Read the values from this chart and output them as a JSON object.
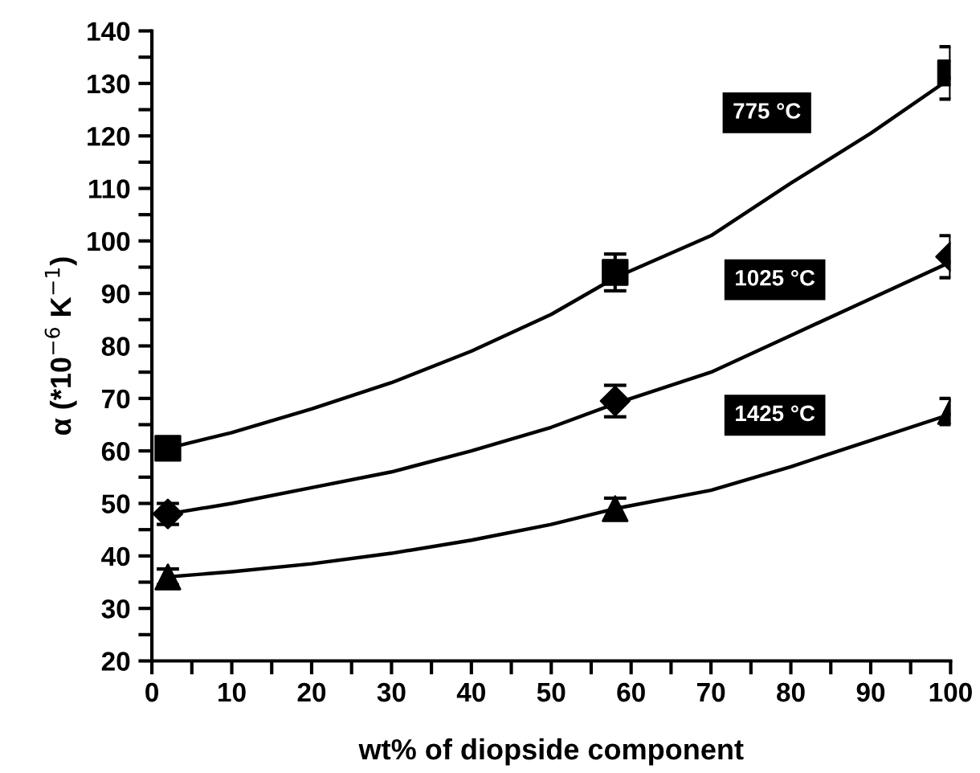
{
  "chart_data": {
    "type": "scatter",
    "xlabel": "wt% of diopside component",
    "ylabel": "α (*10$^{−6}$ K$^{−1}$)",
    "xlim": [
      0,
      100
    ],
    "xticks": [
      0,
      {
        "value": 5,
        "label": null
      },
      10,
      {
        "value": 15,
        "label": null
      },
      20,
      {
        "value": 25,
        "label": null
      },
      30,
      {
        "value": 35,
        "label": null
      },
      40,
      {
        "value": 45,
        "label": null
      },
      50,
      {
        "value": 55,
        "label": null
      },
      60,
      {
        "value": 65,
        "label": null
      },
      70,
      {
        "value": 75,
        "label": null
      },
      80,
      {
        "value": 85,
        "label": null
      },
      90,
      {
        "value": 95,
        "label": null
      },
      100
    ],
    "ylim": [
      20,
      140
    ],
    "yticks": [
      20,
      {
        "value": 25,
        "label": null
      },
      30,
      {
        "value": 35,
        "label": null
      },
      40,
      {
        "value": 45,
        "label": null
      },
      50,
      {
        "value": 55,
        "label": null
      },
      60,
      {
        "value": 65,
        "label": null
      },
      70,
      {
        "value": 75,
        "label": null
      },
      80,
      {
        "value": 85,
        "label": null
      },
      90,
      {
        "value": 95,
        "label": null
      },
      100,
      {
        "value": 105,
        "label": null
      },
      110,
      {
        "value": 115,
        "label": null
      },
      120,
      {
        "value": 125,
        "label": null
      },
      130,
      {
        "value": 135,
        "label": null
      },
      140
    ],
    "grid": false,
    "legend": false,
    "series": [
      {
        "marker": "square",
        "color": "#000000",
        "x": [
          2,
          58,
          100
        ],
        "values": [
          60.5,
          94,
          132
        ],
        "errors": [
          1.5,
          3.5,
          5
        ]
      },
      {
        "marker": "diamond",
        "color": "#000000",
        "x": [
          2,
          58,
          100
        ],
        "values": [
          48,
          69.5,
          97
        ],
        "errors": [
          2,
          3,
          4
        ]
      },
      {
        "marker": "triangle",
        "color": "#000000",
        "x": [
          2,
          58,
          100
        ],
        "values": [
          36,
          49,
          67.5
        ],
        "errors": [
          1.5,
          2,
          2.5
        ]
      },
      {
        "type": "line",
        "color": "#000000",
        "x": [
          2,
          10,
          20,
          30,
          40,
          50,
          58,
          70,
          80,
          90,
          100
        ],
        "values": [
          60.5,
          63.5,
          68,
          73,
          79,
          86,
          93,
          101,
          111,
          120.5,
          131
        ]
      },
      {
        "type": "line",
        "color": "#000000",
        "x": [
          2,
          10,
          20,
          30,
          40,
          50,
          58,
          70,
          80,
          90,
          100
        ],
        "values": [
          48,
          50,
          53,
          56,
          60,
          64.5,
          69,
          75,
          82,
          89,
          96
        ]
      },
      {
        "type": "line",
        "color": "#000000",
        "x": [
          2,
          10,
          20,
          30,
          40,
          50,
          58,
          70,
          80,
          90,
          100
        ],
        "values": [
          36,
          37,
          38.5,
          40.5,
          43,
          46,
          49,
          52.5,
          57,
          62,
          67
        ]
      }
    ],
    "annotations": [
      "775 °C",
      "1025 °C",
      "1425 °C"
    ]
  }
}
